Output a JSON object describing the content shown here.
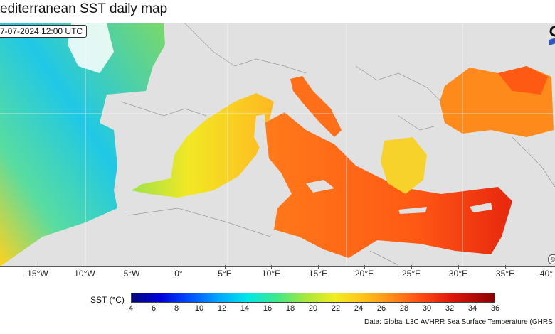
{
  "title": "editerranean SST daily map",
  "timestamp": "7-07-2024 12:00 UTC",
  "lon_labels": [
    "15°W",
    "10°W",
    "5°W",
    "0°",
    "5°E",
    "10°E",
    "15°E",
    "20°E",
    "25°E",
    "30°E",
    "35°E",
    "40°"
  ],
  "colorbar": {
    "label": "SST (°C)",
    "ticks": [
      "4",
      "6",
      "8",
      "10",
      "12",
      "14",
      "16",
      "18",
      "20",
      "22",
      "24",
      "26",
      "28",
      "30",
      "32",
      "34",
      "36"
    ]
  },
  "source": "Data: Global L3C AVHRR Sea Surface Temperature (GHRS",
  "copyright_symbol": "©",
  "colors": {
    "land": "#e1e1e1",
    "sea_warm": "#ff6a14",
    "sea_cool": "#3fd6c6",
    "atlantic": "#7ce07a"
  }
}
